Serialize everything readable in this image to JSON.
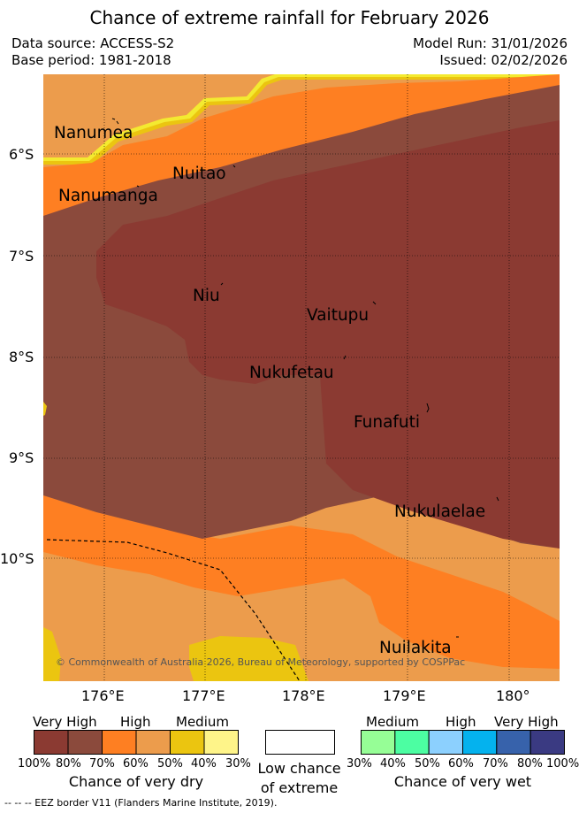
{
  "title": "Chance of extreme rainfall for February 2026",
  "meta": {
    "data_source": "Data source: ACCESS-S2",
    "base_period": "Base period: 1981-2018",
    "model_run": "Model Run: 31/01/2026",
    "issued": "Issued: 02/02/2026"
  },
  "map": {
    "lon_ticks": [
      "176°E",
      "177°E",
      "178°E",
      "179°E",
      "180°"
    ],
    "lat_ticks": [
      "6°S",
      "7°S",
      "8°S",
      "9°S",
      "10°S"
    ],
    "places": {
      "nanumea": "Nanumea",
      "nuitao": "Nuitao",
      "nanumanga": "Nanumanga",
      "niu": "Niu",
      "vaitupu": "Vaitupu",
      "nukufetau": "Nukufetau",
      "funafuti": "Funafuti",
      "nukulaelae": "Nukulaelae",
      "nuilakita": "Nuilakita"
    },
    "copyright": "© Commonwealth of Australia 2026, Bureau of Meteorology, supported by COSPPac"
  },
  "legend": {
    "dry": {
      "headings": [
        "Very High",
        "High",
        "Medium"
      ],
      "percents": [
        "100%",
        "80%",
        "70%",
        "60%",
        "50%",
        "40%",
        "30%"
      ],
      "colors": [
        "#8b3a32",
        "#8b4a3c",
        "#fe7f22",
        "#ec9c4c",
        "#ebc510",
        "#fef489"
      ],
      "title": "Chance of very dry"
    },
    "low": {
      "line1": "Low chance",
      "line2": "of extreme"
    },
    "wet": {
      "headings": [
        "Medium",
        "High",
        "Very High"
      ],
      "percents": [
        "30%",
        "40%",
        "50%",
        "60%",
        "70%",
        "80%",
        "100%"
      ],
      "colors": [
        "#96fe96",
        "#4cfea2",
        "#8cd0fe",
        "#04b2ee",
        "#3762ab",
        "#3a3a82"
      ],
      "title": "Chance of very wet"
    }
  },
  "footnote": "-- -- -- EEZ border V11 (Flanders Marine Institute, 2019)."
}
